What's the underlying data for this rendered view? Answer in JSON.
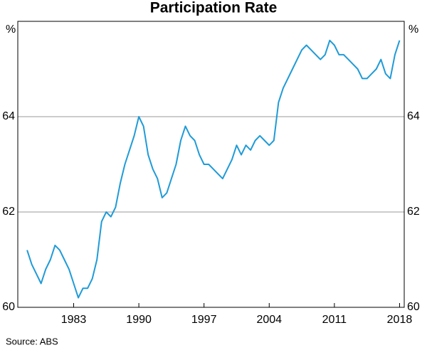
{
  "chart_data": {
    "type": "line",
    "title": "Participation Rate",
    "y_unit": "%",
    "source": "Source: ABS",
    "x": [
      1978.0,
      1978.5,
      1979.0,
      1979.5,
      1980.0,
      1980.5,
      1981.0,
      1981.5,
      1982.0,
      1982.5,
      1983.0,
      1983.5,
      1984.0,
      1984.5,
      1985.0,
      1985.5,
      1986.0,
      1986.5,
      1987.0,
      1987.5,
      1988.0,
      1988.5,
      1989.0,
      1989.5,
      1990.0,
      1990.5,
      1991.0,
      1991.5,
      1992.0,
      1992.5,
      1993.0,
      1993.5,
      1994.0,
      1994.5,
      1995.0,
      1995.5,
      1996.0,
      1996.5,
      1997.0,
      1997.5,
      1998.0,
      1998.5,
      1999.0,
      1999.5,
      2000.0,
      2000.5,
      2001.0,
      2001.5,
      2002.0,
      2002.5,
      2003.0,
      2003.5,
      2004.0,
      2004.5,
      2005.0,
      2005.5,
      2006.0,
      2006.5,
      2007.0,
      2007.5,
      2008.0,
      2008.5,
      2009.0,
      2009.5,
      2010.0,
      2010.5,
      2011.0,
      2011.5,
      2012.0,
      2012.5,
      2013.0,
      2013.5,
      2014.0,
      2014.5,
      2015.0,
      2015.5,
      2016.0,
      2016.5,
      2017.0,
      2017.5,
      2018.0
    ],
    "series": [
      {
        "name": "Participation rate",
        "color": "#1f9bd7",
        "values": [
          61.2,
          60.9,
          60.7,
          60.5,
          60.8,
          61.0,
          61.3,
          61.2,
          61.0,
          60.8,
          60.5,
          60.2,
          60.4,
          60.4,
          60.6,
          61.0,
          61.8,
          62.0,
          61.9,
          62.1,
          62.6,
          63.0,
          63.3,
          63.6,
          64.0,
          63.8,
          63.2,
          62.9,
          62.7,
          62.3,
          62.4,
          62.7,
          63.0,
          63.5,
          63.8,
          63.6,
          63.5,
          63.2,
          63.0,
          63.0,
          62.9,
          62.8,
          62.7,
          62.9,
          63.1,
          63.4,
          63.2,
          63.4,
          63.3,
          63.5,
          63.6,
          63.5,
          63.4,
          63.5,
          64.3,
          64.6,
          64.8,
          65.0,
          65.2,
          65.4,
          65.5,
          65.4,
          65.3,
          65.2,
          65.3,
          65.6,
          65.5,
          65.3,
          65.3,
          65.2,
          65.1,
          65.0,
          64.8,
          64.8,
          64.9,
          65.0,
          65.2,
          64.9,
          64.8,
          65.3,
          65.6
        ]
      }
    ],
    "xlim": [
      1977,
      2018.5
    ],
    "xticks": [
      1983,
      1990,
      1997,
      2004,
      2011,
      2018
    ],
    "ylim": [
      60,
      66
    ],
    "yticks": [
      60,
      62,
      64
    ],
    "grid": true
  }
}
